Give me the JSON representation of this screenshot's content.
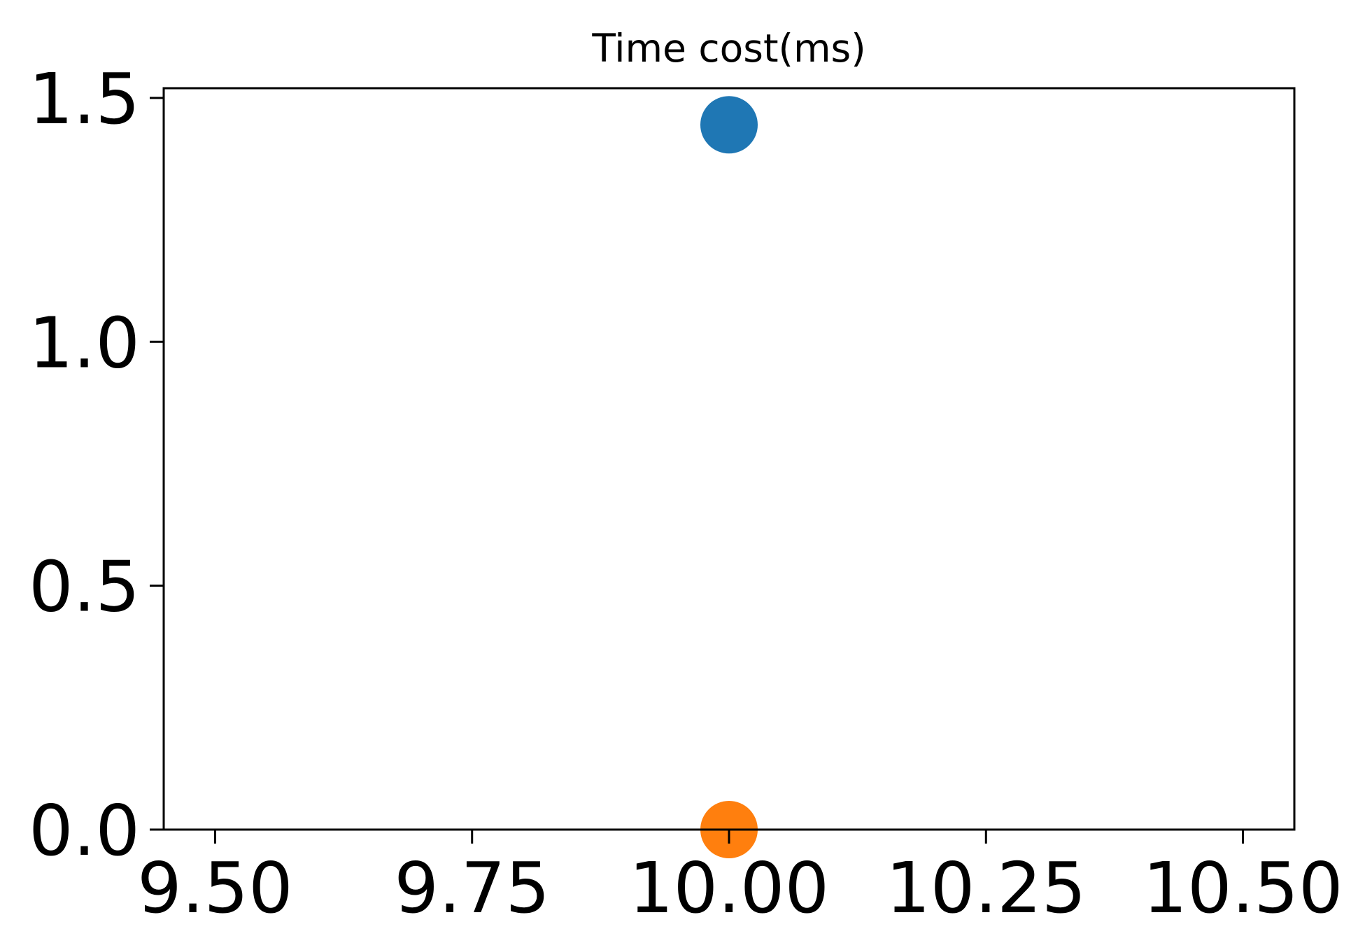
{
  "chart_data": {
    "type": "scatter",
    "title": "Time cost(ms)",
    "xlabel": "",
    "ylabel": "",
    "xlim": [
      9.45,
      10.55
    ],
    "ylim": [
      0.0,
      1.52
    ],
    "xticks": [
      9.5,
      9.75,
      10.0,
      10.25,
      10.5
    ],
    "xtick_labels": [
      "9.50",
      "9.75",
      "10.00",
      "10.25",
      "10.50"
    ],
    "yticks": [
      0.0,
      0.5,
      1.0,
      1.5
    ],
    "ytick_labels": [
      "0.0",
      "0.5",
      "1.0",
      "1.5"
    ],
    "grid": false,
    "series": [
      {
        "x": [
          10.0
        ],
        "y": [
          1.445
        ],
        "color": "#1f77b4"
      },
      {
        "x": [
          10.0
        ],
        "y": [
          0.0
        ],
        "color": "#ff7f0e"
      }
    ]
  }
}
